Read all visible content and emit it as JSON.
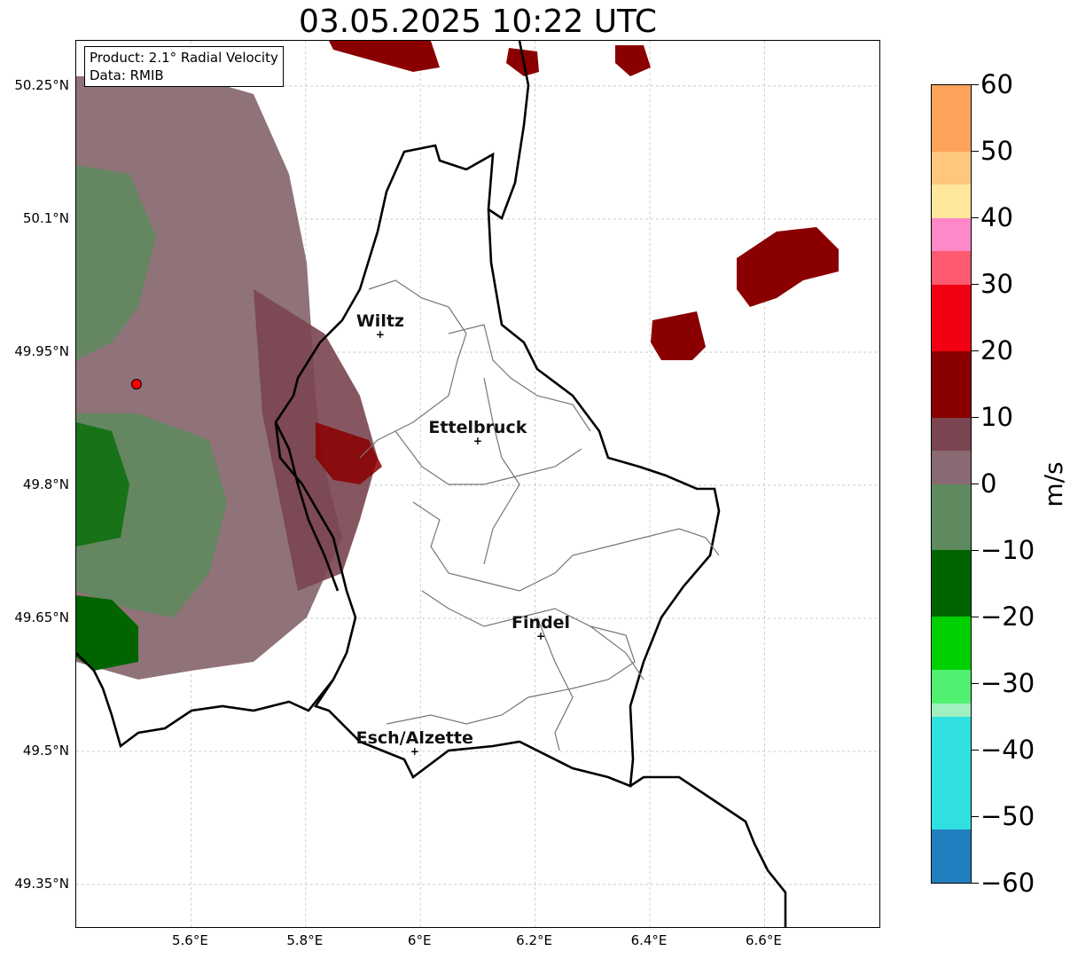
{
  "title": "03.05.2025 10:22 UTC",
  "info": {
    "product": "Product: 2.1° Radial Velocity",
    "data": "Data: RMIB"
  },
  "lat_ticks": [
    "50.25°N",
    "50.1°N",
    "49.95°N",
    "49.8°N",
    "49.65°N",
    "49.5°N",
    "49.35°N"
  ],
  "lon_ticks": [
    "5.6°E",
    "5.8°E",
    "6°E",
    "6.2°E",
    "6.4°E",
    "6.6°E"
  ],
  "cities": [
    {
      "name": "Wiltz",
      "lon": 5.93,
      "lat": 49.97
    },
    {
      "name": "Ettelbruck",
      "lon": 6.1,
      "lat": 49.85
    },
    {
      "name": "Findel",
      "lon": 6.21,
      "lat": 49.63
    },
    {
      "name": "Esch/Alzette",
      "lon": 5.99,
      "lat": 49.5
    }
  ],
  "radar_site": {
    "lon": 5.505,
    "lat": 49.914
  },
  "colorbar": {
    "unit": "m/s",
    "min": -60,
    "max": 60,
    "ticks": [
      "60",
      "50",
      "40",
      "30",
      "20",
      "10",
      "0",
      "−10",
      "−20",
      "−30",
      "−40",
      "−50",
      "−60"
    ],
    "colors": {
      "orange": "#fda35a",
      "peach": "#fec77e",
      "yellow": "#fee79b",
      "pink": "#fe88c8",
      "coral": "#fe5a70",
      "red": "#f00010",
      "darkred": "#8a0000",
      "maroon": "#7a4550",
      "mauve": "#8a6a72",
      "sage": "#5f8a5f",
      "darkgreen": "#006400",
      "green": "#00d000",
      "lightgreen": "#50f070",
      "mint": "#a0f0c0",
      "cyan": "#30e0e0",
      "blue": "#2080c0"
    }
  }
}
